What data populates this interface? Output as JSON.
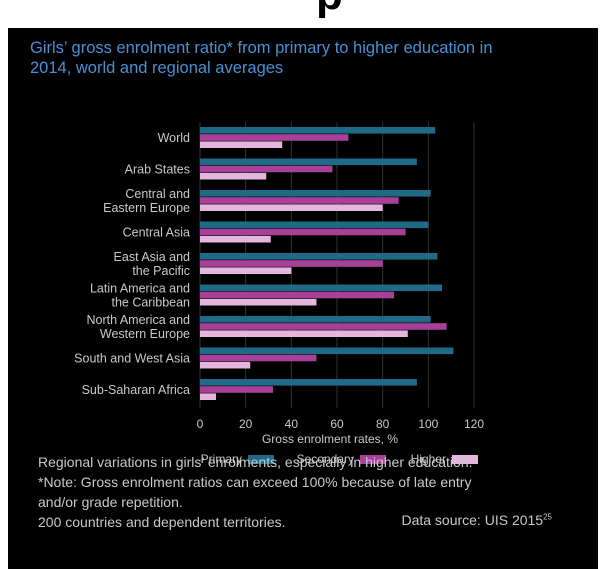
{
  "header_glyph": "p",
  "chart_data": {
    "type": "bar",
    "orientation": "horizontal",
    "title": "Girls’ gross enrolment ratio* from primary to higher education in 2014, world and regional averages",
    "categories": [
      [
        "World"
      ],
      [
        "Arab States"
      ],
      [
        "Central and",
        "Eastern Europe"
      ],
      [
        "Central Asia"
      ],
      [
        "East Asia and",
        "the Pacific"
      ],
      [
        "Latin America and",
        "the Caribbean"
      ],
      [
        "North America and",
        "Western Europe"
      ],
      [
        "South and West Asia"
      ],
      [
        "Sub-Saharan Africa"
      ]
    ],
    "series": [
      {
        "name": "Primary",
        "color": "#1f6a86",
        "values": [
          103,
          95,
          101,
          100,
          104,
          106,
          101,
          111,
          95
        ]
      },
      {
        "name": "Secondary",
        "color": "#a8409a",
        "values": [
          65,
          58,
          87,
          90,
          80,
          85,
          108,
          51,
          32
        ]
      },
      {
        "name": "Higher",
        "color": "#e3b6dd",
        "values": [
          36,
          29,
          80,
          31,
          40,
          51,
          91,
          22,
          7
        ]
      }
    ],
    "xlabel": "Gross enrolment rates, %",
    "xlim": [
      0,
      120
    ],
    "xticks": [
      0,
      20,
      40,
      60,
      80,
      100,
      120
    ],
    "legend_position": "bottom",
    "grid": true
  },
  "notes": [
    "Regional variations in girls’ enrolments, especially in higher education.",
    "*Note: Gross enrolment ratios can exceed 100% because of late entry",
    "and/or grade repetition.",
    "200 countries and dependent territories."
  ],
  "source": {
    "text": "Data source: UIS 2015",
    "ref": "25"
  }
}
